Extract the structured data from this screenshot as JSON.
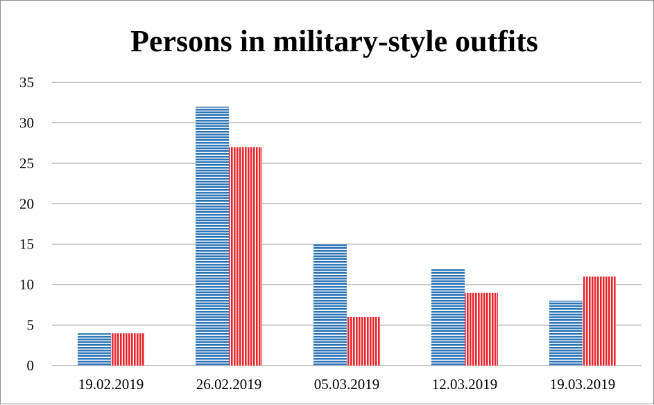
{
  "chart_data": {
    "type": "bar",
    "title": "Persons in military-style outfits",
    "xlabel": "",
    "ylabel": "",
    "categories": [
      "19.02.2019",
      "26.02.2019",
      "05.03.2019",
      "12.03.2019",
      "19.03.2019"
    ],
    "series": [
      {
        "values": [
          4,
          32,
          15,
          12,
          8
        ],
        "color": "#2e75b6",
        "pattern": "horizontal-stripes"
      },
      {
        "values": [
          4,
          27,
          6,
          9,
          11
        ],
        "color": "#e8262c",
        "pattern": "vertical-stripes"
      }
    ],
    "ylim": [
      0,
      35
    ],
    "yticks": [
      0,
      5,
      10,
      15,
      20,
      25,
      30,
      35
    ],
    "grid": true,
    "legend": "none"
  }
}
